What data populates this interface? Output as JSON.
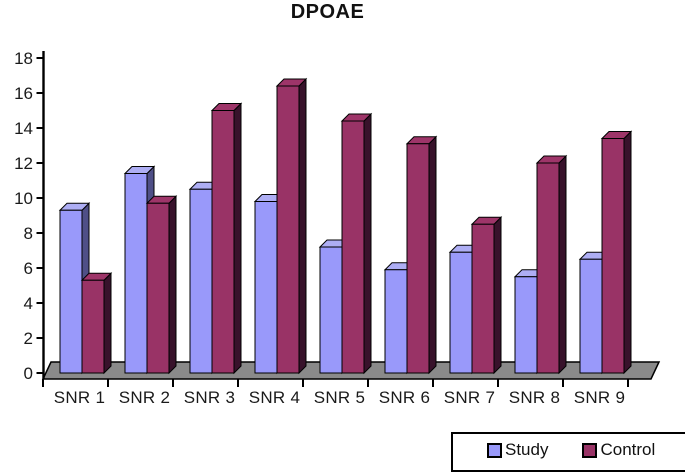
{
  "chart_data": {
    "type": "bar",
    "style": "3d-clustered",
    "title": "DPOAE",
    "categories": [
      "SNR 1",
      "SNR 2",
      "SNR 3",
      "SNR 4",
      "SNR 5",
      "SNR 6",
      "SNR 7",
      "SNR 8",
      "SNR 9"
    ],
    "series": [
      {
        "name": "Study",
        "values": [
          9.3,
          11.4,
          10.5,
          9.8,
          7.2,
          5.9,
          6.9,
          5.5,
          6.5
        ],
        "color_front": "#9999FA",
        "color_top": "#AEAEF4",
        "color_side": "#4F4F87"
      },
      {
        "name": "Control",
        "values": [
          5.3,
          9.7,
          15.0,
          16.4,
          14.4,
          13.1,
          8.5,
          12.0,
          13.4
        ],
        "color_front": "#993366",
        "color_top": "#9E3569",
        "color_side": "#38122B"
      }
    ],
    "xlabel": "",
    "ylabel": "",
    "ylim": [
      0,
      18
    ],
    "ytick_step": 2,
    "ytick_labels": [
      "0",
      "2",
      "4",
      "6",
      "8",
      "10",
      "12",
      "14",
      "16",
      "18"
    ],
    "grid": false,
    "legend_position": "bottom-right",
    "floor_color": "#8A8A8A",
    "axis_color": "#000000",
    "label_color": "#1a1a1a"
  }
}
